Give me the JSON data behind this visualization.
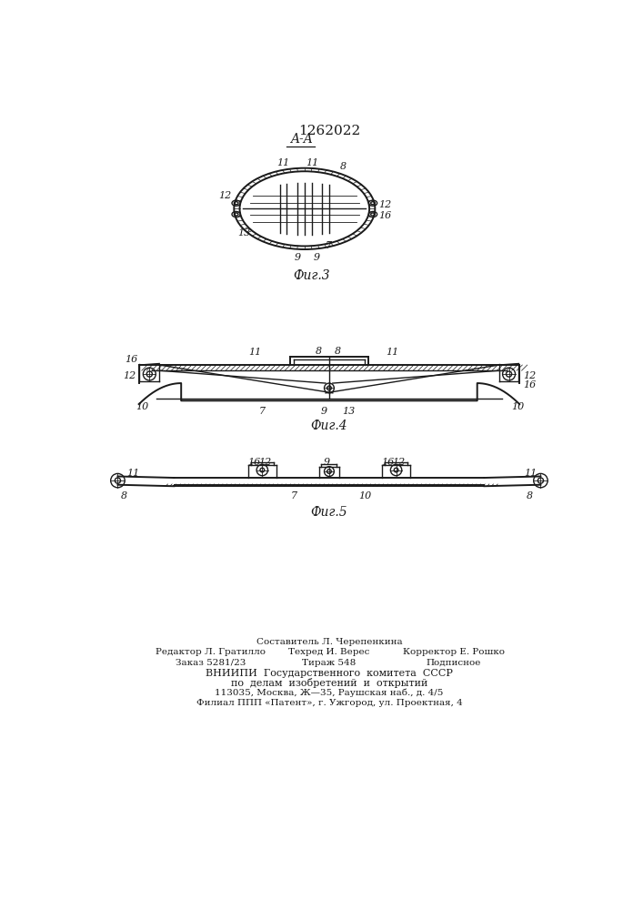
{
  "patent_number": "1262022",
  "bg": "#ffffff",
  "lc": "#1a1a1a",
  "fig3_label": "Фиг.3",
  "fig4_label": "Фиг.4",
  "fig5_label": "Фиг.5",
  "footer_cols_line1": [
    "",
    "Составитель Л. Черепенкина",
    ""
  ],
  "footer_cols_line2": [
    "Редактор Л. Гратилло",
    "Техред И. Верес",
    "Корректор Е. Рошко"
  ],
  "footer_cols_line3": [
    "Заказ 5281/23",
    "Тираж 548",
    "Подписное"
  ],
  "footer_line4": "ВНИИПИ  Государственного  комитета  СССР",
  "footer_line5": "по  делам  изобретений  и  открытий",
  "footer_line6": "113035, Москва, Ж—35, Раушская наб., д. 4/5",
  "footer_line7": "Филиал ППП «Патент», г. Ужгород, ул. Проектная, 4"
}
